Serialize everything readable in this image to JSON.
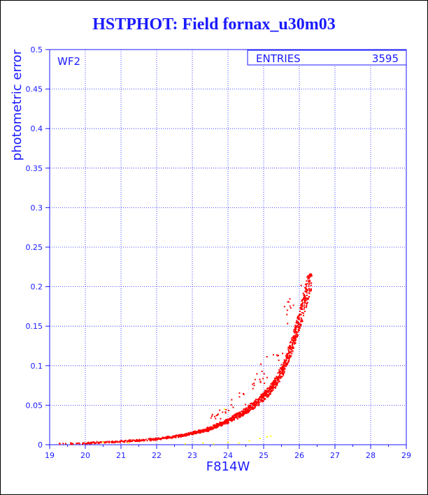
{
  "header": {
    "title": "HSTPHOT: Field fornax_u30m03"
  },
  "stats_box": {
    "label": "ENTRIES",
    "value": "3595"
  },
  "chart_data": {
    "type": "scatter",
    "title": "HSTPHOT: Field fornax_u30m03",
    "panel_label": "WF2",
    "xlabel": "F814W",
    "ylabel": "photometric error",
    "xlim": [
      19,
      29
    ],
    "ylim": [
      0,
      0.5
    ],
    "x_ticks": [
      19,
      20,
      21,
      22,
      23,
      24,
      25,
      26,
      27,
      28,
      29
    ],
    "y_ticks": [
      0,
      0.05,
      0.1,
      0.15,
      0.2,
      0.25,
      0.3,
      0.35,
      0.4,
      0.45,
      0.5
    ],
    "grid": true,
    "entries": 3595,
    "series": [
      {
        "color": "#ff0000",
        "trend": {
          "x": [
            19.2,
            20.0,
            21.0,
            22.0,
            22.5,
            23.0,
            23.5,
            24.0,
            24.5,
            25.0,
            25.3,
            25.6,
            25.8,
            26.0,
            26.2,
            26.35
          ],
          "y": [
            0.001,
            0.002,
            0.004,
            0.007,
            0.01,
            0.014,
            0.02,
            0.03,
            0.042,
            0.06,
            0.075,
            0.1,
            0.125,
            0.155,
            0.19,
            0.215
          ]
        }
      },
      {
        "color": "#ffff00",
        "x": [
          20.5,
          21.2,
          22.8,
          23.3,
          23.6,
          24.0,
          24.3,
          24.6,
          24.9,
          25.1,
          25.2,
          23.9
        ],
        "y": [
          0.003,
          0.002,
          0.001,
          0.002,
          0.001,
          0.003,
          0.002,
          0.005,
          0.008,
          0.01,
          0.011,
          0.045
        ]
      }
    ]
  }
}
